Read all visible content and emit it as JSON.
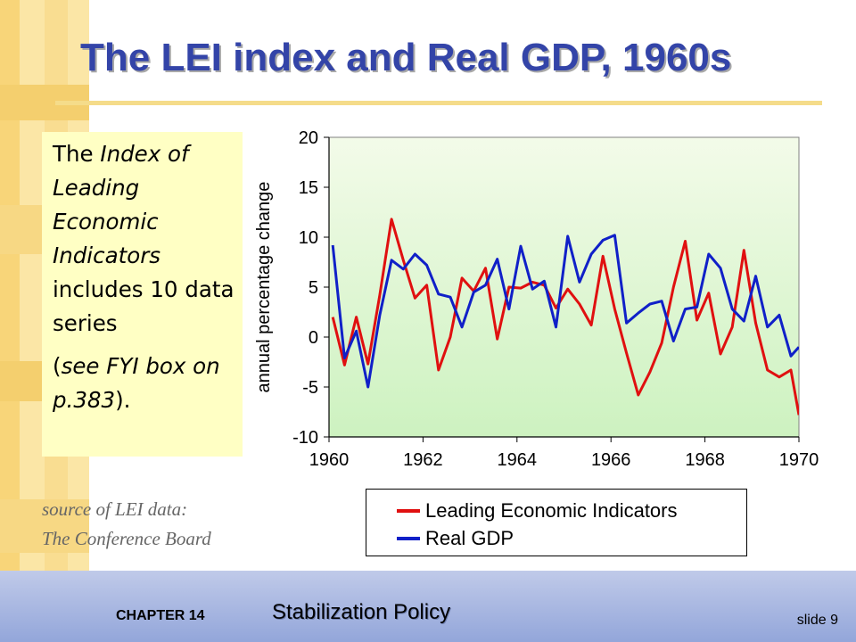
{
  "slide": {
    "title": "The LEI index and Real GDP, 1960s",
    "note": {
      "part1": "The ",
      "part2": "Index of Leading Economic Indicators",
      "part3": " includes 10 data series",
      "part4": "(",
      "part5": "see FYI box on p.383",
      "part6": ")."
    },
    "source_line1": "source of LEI data:",
    "source_line2": "The Conference Board",
    "footer": {
      "chapter": "CHAPTER 14",
      "topic": "Stabilization Policy",
      "slide_number": "slide 9"
    },
    "colors": {
      "title": "#3344a8",
      "plot_background_top": "#f3fbe9",
      "plot_background_bottom": "#cdf2c0"
    }
  },
  "chart_data": {
    "type": "line",
    "title": "",
    "xlabel": "",
    "ylabel": "annual percentage change",
    "xlim": [
      1960,
      1970
    ],
    "ylim": [
      -10,
      20
    ],
    "xticks": [
      1960,
      1962,
      1964,
      1966,
      1968,
      1970
    ],
    "yticks": [
      -10,
      -5,
      0,
      5,
      10,
      15,
      20
    ],
    "grid": false,
    "legend_position": "bottom",
    "series": [
      {
        "name": "Leading Economic Indicators",
        "color": "#e01010",
        "x": [
          1960.08,
          1960.33,
          1960.58,
          1960.83,
          1961.08,
          1961.33,
          1961.58,
          1961.83,
          1962.08,
          1962.33,
          1962.58,
          1962.83,
          1963.08,
          1963.33,
          1963.58,
          1963.83,
          1964.08,
          1964.33,
          1964.58,
          1964.83,
          1965.08,
          1965.33,
          1965.58,
          1965.83,
          1966.08,
          1966.33,
          1966.58,
          1966.83,
          1967.08,
          1967.33,
          1967.58,
          1967.83,
          1968.08,
          1968.33,
          1968.58,
          1968.83,
          1969.08,
          1969.33,
          1969.58,
          1969.83,
          1970.0
        ],
        "y": [
          2.0,
          -2.8,
          2.0,
          -2.7,
          4.2,
          11.8,
          7.7,
          3.9,
          5.2,
          -3.3,
          0.0,
          5.9,
          4.6,
          6.9,
          -0.2,
          5.0,
          4.9,
          5.5,
          5.2,
          2.9,
          4.8,
          3.3,
          1.2,
          8.1,
          2.8,
          -1.6,
          -5.8,
          -3.5,
          -0.6,
          5.0,
          9.6,
          1.7,
          4.4,
          -1.7,
          1.0,
          8.7,
          1.4,
          -3.3,
          -4.0,
          -3.3,
          -7.8
        ]
      },
      {
        "name": "Real GDP",
        "color": "#1020c8",
        "x": [
          1960.08,
          1960.33,
          1960.58,
          1960.83,
          1961.08,
          1961.33,
          1961.58,
          1961.83,
          1962.08,
          1962.33,
          1962.58,
          1962.83,
          1963.08,
          1963.33,
          1963.58,
          1963.83,
          1964.08,
          1964.33,
          1964.58,
          1964.83,
          1965.08,
          1965.33,
          1965.58,
          1965.83,
          1966.08,
          1966.33,
          1966.58,
          1966.83,
          1967.08,
          1967.33,
          1967.58,
          1967.83,
          1968.08,
          1968.33,
          1968.58,
          1968.83,
          1969.08,
          1969.33,
          1969.58,
          1969.83,
          1970.0
        ],
        "y": [
          9.2,
          -2.1,
          0.6,
          -5.0,
          2.2,
          7.7,
          6.8,
          8.3,
          7.2,
          4.3,
          4.0,
          1.0,
          4.5,
          5.2,
          7.8,
          2.8,
          9.1,
          4.8,
          5.6,
          1.0,
          10.1,
          5.5,
          8.3,
          9.7,
          10.2,
          1.4,
          2.4,
          3.3,
          3.6,
          -0.4,
          2.8,
          3.0,
          8.3,
          6.9,
          2.8,
          1.6,
          6.1,
          1.0,
          2.2,
          -1.9,
          -1.0
        ]
      }
    ]
  }
}
